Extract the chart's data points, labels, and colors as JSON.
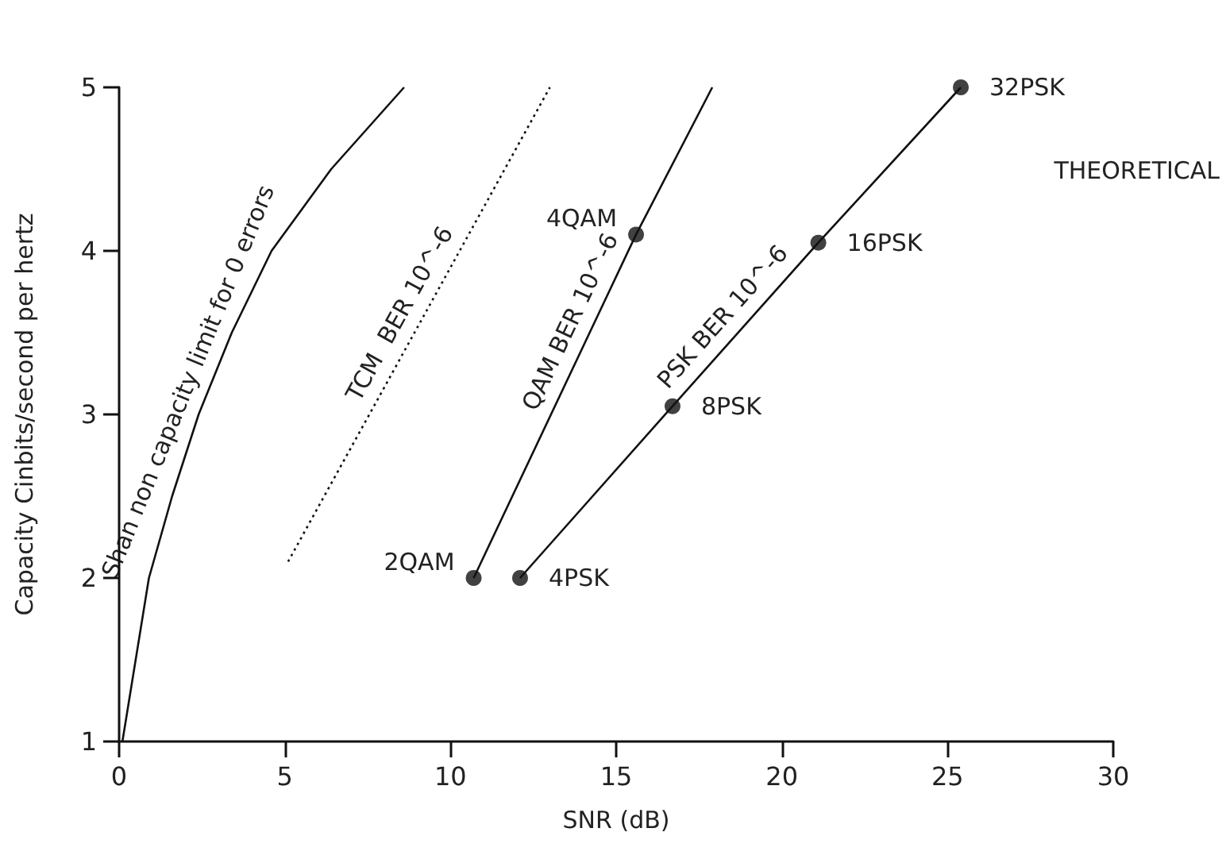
{
  "chart_data": {
    "type": "line",
    "xlabel": "SNR (dB)",
    "ylabel": "Capacity Cinbits/second per hertz",
    "xlim": [
      0,
      30
    ],
    "xticks": [
      0,
      5,
      10,
      15,
      20,
      25,
      30
    ],
    "ylim": [
      1,
      5
    ],
    "yticks": [
      1,
      2,
      3,
      4,
      5
    ],
    "legend": false,
    "annotations": [
      "THEORETICAL",
      {
        "text": "2QAM",
        "x": 10.7,
        "y": 2
      },
      {
        "text": "4QAM",
        "x": 15.6,
        "y": 4.1
      },
      {
        "text": "4PSK",
        "x": 12.1,
        "y": 2
      },
      {
        "text": "8PSK",
        "x": 16.7,
        "y": 3.05
      },
      {
        "text": "16PSK",
        "x": 21.1,
        "y": 4.05
      },
      {
        "text": "32PSK",
        "x": 25.4,
        "y": 5
      }
    ],
    "series": [
      {
        "name": "Shan non capacity limit for 0 errors",
        "color": "#111111",
        "line_style": "solid",
        "marker": "none",
        "x": [
          0.1,
          0.9,
          1.6,
          2.4,
          3.4,
          4.6,
          6.4,
          8.6
        ],
        "values": [
          1,
          2,
          2.5,
          3,
          3.5,
          4,
          4.5,
          5
        ]
      },
      {
        "name": "TCM  BER 10^-6",
        "color": "#111111",
        "line_style": "dotted",
        "marker": "none",
        "x": [
          5.1,
          13.0
        ],
        "values": [
          2.1,
          5
        ]
      },
      {
        "name": "QAM BER 10^-6",
        "color": "#111111",
        "line_style": "solid",
        "marker": "none",
        "x": [
          10.7,
          15.6,
          17.9
        ],
        "values": [
          2,
          4.1,
          5
        ]
      },
      {
        "name": "PSK BER 10^-6",
        "color": "#111111",
        "line_style": "solid",
        "marker": "none",
        "x": [
          12.1,
          16.7,
          21.1,
          25.4
        ],
        "values": [
          2,
          3.05,
          4.05,
          5
        ]
      },
      {
        "type": "scatter",
        "color": "#111111",
        "marker": "circle",
        "x": [
          10.7,
          15.6
        ],
        "values": [
          2,
          4.1
        ]
      },
      {
        "type": "scatter",
        "color": "#111111",
        "marker": "circle",
        "x": [
          12.1,
          16.7,
          21.1,
          25.4
        ],
        "values": [
          2,
          3.05,
          4.05,
          5
        ]
      }
    ]
  }
}
